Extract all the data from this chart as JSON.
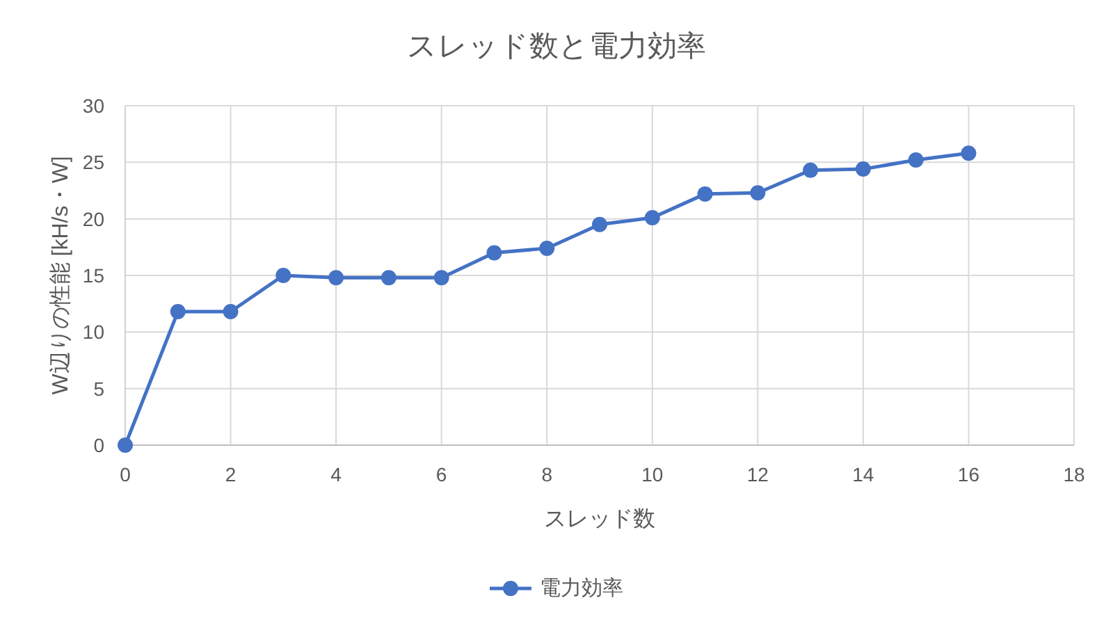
{
  "chart_data": {
    "type": "line",
    "title": "スレッド数と電力効率",
    "xlabel": "スレッド数",
    "ylabel": "W辺りの性能 [kH/s・W]",
    "x": [
      0,
      1,
      2,
      3,
      4,
      5,
      6,
      7,
      8,
      9,
      10,
      11,
      12,
      13,
      14,
      15,
      16
    ],
    "series": [
      {
        "name": "電力効率",
        "color": "#4472c4",
        "values": [
          0,
          11.8,
          11.8,
          15.0,
          14.8,
          14.8,
          14.8,
          17.0,
          17.4,
          19.5,
          20.1,
          22.2,
          22.3,
          24.3,
          24.4,
          25.2,
          25.8
        ]
      }
    ],
    "xlim": [
      0,
      18
    ],
    "xticks": [
      0,
      2,
      4,
      6,
      8,
      10,
      12,
      14,
      16,
      18
    ],
    "ylim": [
      0,
      30
    ],
    "yticks": [
      0,
      5,
      10,
      15,
      20,
      25,
      30
    ],
    "grid": true,
    "legend": "bottom",
    "marker": "circle",
    "line_style": "solid"
  }
}
